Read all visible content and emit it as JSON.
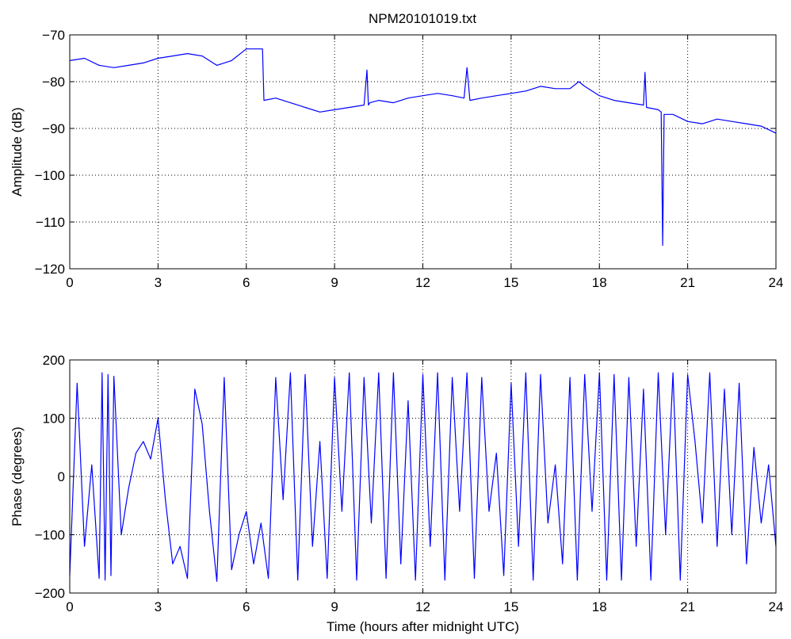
{
  "figure": {
    "title": "NPM20101019.txt"
  },
  "chart_data": [
    {
      "type": "line",
      "title": "NPM20101019.txt",
      "xlabel": "",
      "ylabel": "Amplitude (dB)",
      "xlim": [
        0,
        24
      ],
      "ylim": [
        -120,
        -70
      ],
      "xticks": [
        0,
        3,
        6,
        9,
        12,
        15,
        18,
        21,
        24
      ],
      "yticks": [
        -120,
        -110,
        -100,
        -90,
        -80,
        -70
      ],
      "ytick_labels": [
        "−120",
        "−110",
        "−100",
        "−90",
        "−80",
        "−70"
      ],
      "grid": true,
      "color": "#0000ff",
      "series": [
        {
          "x": [
            0,
            0.5,
            1,
            1.5,
            2,
            2.5,
            3,
            3.5,
            4,
            4.5,
            5,
            5.5,
            6,
            6.4,
            6.55,
            6.6,
            7,
            7.5,
            8,
            8.5,
            9,
            9.5,
            10,
            10.1,
            10.15,
            10.2,
            10.5,
            11,
            11.5,
            12,
            12.5,
            13,
            13.4,
            13.5,
            13.6,
            14,
            14.5,
            15,
            15.5,
            16,
            16.5,
            17,
            17.3,
            17.5,
            18,
            18.5,
            19,
            19.5,
            19.55,
            19.6,
            20,
            20.1,
            20.15,
            20.2,
            20.5,
            21,
            21.5,
            22,
            22.5,
            23,
            23.5,
            24
          ],
          "y": [
            -75.5,
            -75,
            -76.5,
            -77,
            -76.5,
            -76,
            -75,
            -74.5,
            -74,
            -74.5,
            -76.5,
            -75.5,
            -73,
            -73,
            -73,
            -84,
            -83.5,
            -84.5,
            -85.5,
            -86.5,
            -86,
            -85.5,
            -85,
            -77.5,
            -85,
            -84.5,
            -84,
            -84.5,
            -83.5,
            -83,
            -82.5,
            -83,
            -83.5,
            -77,
            -84,
            -83.5,
            -83,
            -82.5,
            -82,
            -81,
            -81.5,
            -81.5,
            -80,
            -81,
            -83,
            -84,
            -84.5,
            -85,
            -78,
            -85.5,
            -86,
            -86.5,
            -115,
            -87,
            -87,
            -88.5,
            -89,
            -88,
            -88.5,
            -89,
            -89.5,
            -91
          ]
        }
      ]
    },
    {
      "type": "line",
      "title": "",
      "xlabel": "Time (hours after midnight UTC)",
      "ylabel": "Phase (degrees)",
      "xlim": [
        0,
        24
      ],
      "ylim": [
        -200,
        200
      ],
      "xticks": [
        0,
        3,
        6,
        9,
        12,
        15,
        18,
        21,
        24
      ],
      "yticks": [
        -200,
        -100,
        0,
        100,
        200
      ],
      "ytick_labels": [
        "−200",
        "−100",
        "0",
        "100",
        "200"
      ],
      "grid": true,
      "color": "#0000ff",
      "series": [
        {
          "x": [
            0,
            0.25,
            0.5,
            0.75,
            1,
            1.1,
            1.2,
            1.3,
            1.4,
            1.5,
            1.75,
            2,
            2.25,
            2.5,
            2.75,
            3,
            3.25,
            3.5,
            3.75,
            4,
            4.25,
            4.5,
            4.75,
            5,
            5.25,
            5.5,
            5.75,
            6,
            6.25,
            6.5,
            6.75,
            7,
            7.25,
            7.5,
            7.75,
            8,
            8.25,
            8.5,
            8.75,
            9,
            9.25,
            9.5,
            9.75,
            10,
            10.25,
            10.5,
            10.75,
            11,
            11.25,
            11.5,
            11.75,
            12,
            12.25,
            12.5,
            12.75,
            13,
            13.25,
            13.5,
            13.75,
            14,
            14.25,
            14.5,
            14.75,
            15,
            15.25,
            15.5,
            15.75,
            16,
            16.25,
            16.5,
            16.75,
            17,
            17.25,
            17.5,
            17.75,
            18,
            18.25,
            18.5,
            18.75,
            19,
            19.25,
            19.5,
            19.75,
            20,
            20.25,
            20.5,
            20.75,
            21,
            21.25,
            21.5,
            21.75,
            22,
            22.25,
            22.5,
            22.75,
            23,
            23.25,
            23.5,
            23.75,
            24
          ],
          "y": [
            -170,
            160,
            -120,
            20,
            -175,
            178,
            -178,
            175,
            -170,
            172,
            -100,
            -20,
            40,
            60,
            30,
            100,
            -40,
            -150,
            -120,
            -175,
            150,
            90,
            -60,
            -180,
            170,
            -160,
            -100,
            -60,
            -150,
            -80,
            -175,
            170,
            -40,
            178,
            -178,
            175,
            -120,
            60,
            -175,
            170,
            -60,
            178,
            -178,
            170,
            -80,
            178,
            -175,
            178,
            -150,
            130,
            -178,
            175,
            -120,
            178,
            -178,
            170,
            -60,
            178,
            -175,
            170,
            -60,
            40,
            -170,
            160,
            -120,
            178,
            -178,
            175,
            -80,
            20,
            -150,
            170,
            -178,
            175,
            -60,
            178,
            -178,
            175,
            -178,
            170,
            -120,
            150,
            -178,
            178,
            -100,
            178,
            -178,
            175,
            60,
            -80,
            178,
            -120,
            150,
            -100,
            160,
            -150,
            50,
            -80,
            20,
            -120
          ]
        }
      ]
    }
  ]
}
